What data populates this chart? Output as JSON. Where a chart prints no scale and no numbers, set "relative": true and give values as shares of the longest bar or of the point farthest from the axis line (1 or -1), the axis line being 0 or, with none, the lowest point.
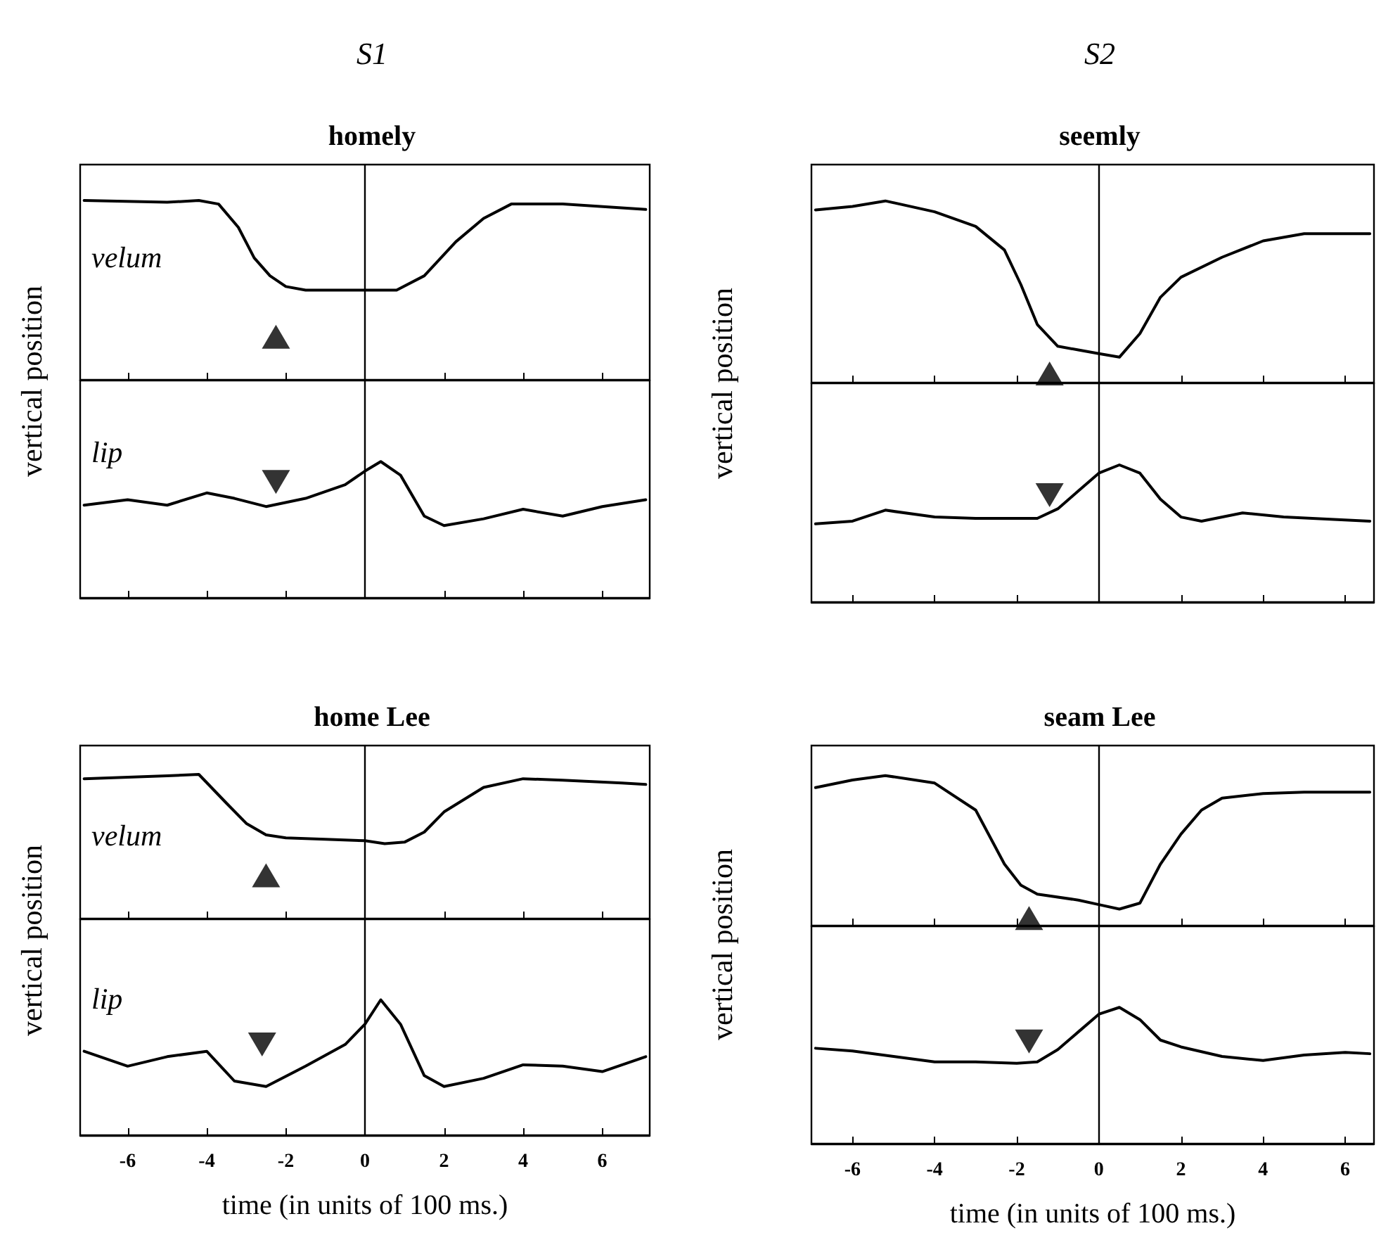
{
  "chart_data": [
    {
      "type": "line",
      "title": "homely",
      "annotations": [
        "S1"
      ],
      "ylabel": "vertical position",
      "relative": true,
      "xlim": [
        -7.2,
        7.2
      ],
      "xticks": [
        -6,
        -4,
        -2,
        0,
        2,
        4,
        6
      ],
      "tick_labels": false,
      "ref_lines": [
        {
          "axis": "x",
          "value": 0
        }
      ],
      "line_style": "solid",
      "series": [
        {
          "name": "velum",
          "color": "#000000",
          "x": [
            -7.1,
            -5,
            -4.2,
            -3.7,
            -3.2,
            -2.8,
            -2.4,
            -2.0,
            -1.5,
            0,
            0.8,
            1.5,
            2.3,
            3.0,
            3.7,
            5,
            7.1
          ],
          "values": [
            1.0,
            0.99,
            1.0,
            0.98,
            0.85,
            0.68,
            0.58,
            0.52,
            0.5,
            0.5,
            0.5,
            0.58,
            0.77,
            0.9,
            0.98,
            0.98,
            0.95
          ]
        },
        {
          "type": "scatter",
          "marker": "triangle",
          "color": "#000000",
          "x": [
            -2.25
          ],
          "values": [
            0.24
          ]
        }
      ]
    },
    {
      "type": "line",
      "relative": true,
      "xlim": [
        -7.2,
        7.2
      ],
      "xticks": [
        -6,
        -4,
        -2,
        0,
        2,
        4,
        6
      ],
      "tick_labels": false,
      "ref_lines": [
        {
          "axis": "x",
          "value": 0
        }
      ],
      "line_style": "solid",
      "series": [
        {
          "name": "lip",
          "color": "#000000",
          "x": [
            -7.1,
            -6,
            -5,
            -4,
            -3.3,
            -2.5,
            -1.5,
            -0.5,
            0,
            0.4,
            0.9,
            1.5,
            2.0,
            3,
            4,
            5,
            6,
            7.1
          ],
          "values": [
            0.68,
            0.72,
            0.68,
            0.77,
            0.73,
            0.67,
            0.73,
            0.83,
            0.93,
            1.0,
            0.9,
            0.6,
            0.53,
            0.58,
            0.65,
            0.6,
            0.67,
            0.72
          ]
        },
        {
          "type": "scatter",
          "marker": "triangle",
          "color": "#000000",
          "x": [
            -2.25
          ],
          "values": [
            0.85
          ]
        }
      ]
    },
    {
      "type": "line",
      "title": "seemly",
      "annotations": [
        "S2"
      ],
      "ylabel": "vertical position",
      "relative": true,
      "xlim": [
        -7.0,
        6.7
      ],
      "xticks": [
        -6,
        -4,
        -2,
        0,
        2,
        4,
        6
      ],
      "tick_labels": false,
      "ref_lines": [
        {
          "axis": "x",
          "value": 0
        }
      ],
      "line_style": "solid",
      "series": [
        {
          "color": "#000000",
          "x": [
            -6.9,
            -6,
            -5.2,
            -4,
            -3,
            -2.3,
            -1.9,
            -1.5,
            -1.0,
            -0.5,
            0,
            0.5,
            1,
            1.5,
            2,
            3,
            4,
            5,
            6,
            6.6
          ],
          "values": [
            0.95,
            0.97,
            1.0,
            0.94,
            0.86,
            0.73,
            0.54,
            0.32,
            0.2,
            0.18,
            0.16,
            0.14,
            0.27,
            0.47,
            0.58,
            0.69,
            0.78,
            0.82,
            0.82,
            0.82
          ]
        },
        {
          "type": "scatter",
          "marker": "triangle",
          "color": "#000000",
          "x": [
            -1.2
          ],
          "values": [
            0.05
          ]
        }
      ]
    },
    {
      "type": "line",
      "relative": true,
      "xlim": [
        -7.0,
        6.7
      ],
      "xticks": [
        -6,
        -4,
        -2,
        0,
        2,
        4,
        6
      ],
      "tick_labels": false,
      "ref_lines": [
        {
          "axis": "x",
          "value": 0
        }
      ],
      "line_style": "solid",
      "series": [
        {
          "color": "#000000",
          "x": [
            -6.9,
            -6,
            -5.2,
            -4,
            -3,
            -2,
            -1.5,
            -1,
            -0.5,
            0,
            0.5,
            1,
            1.5,
            2,
            2.5,
            3.5,
            4.5,
            6.6
          ],
          "values": [
            0.57,
            0.59,
            0.67,
            0.62,
            0.61,
            0.61,
            0.61,
            0.68,
            0.81,
            0.94,
            1.0,
            0.94,
            0.75,
            0.62,
            0.59,
            0.65,
            0.62,
            0.59
          ]
        },
        {
          "type": "scatter",
          "marker": "triangle",
          "color": "#000000",
          "x": [
            -1.2
          ],
          "values": [
            0.78
          ]
        }
      ]
    },
    {
      "type": "line",
      "title": "home Lee",
      "ylabel": "vertical position",
      "relative": true,
      "xlim": [
        -7.2,
        7.2
      ],
      "xticks": [
        -6,
        -4,
        -2,
        0,
        2,
        4,
        6
      ],
      "tick_labels": false,
      "ref_lines": [
        {
          "axis": "x",
          "value": 0
        }
      ],
      "line_style": "solid",
      "series": [
        {
          "name": "velum",
          "color": "#000000",
          "x": [
            -7.1,
            -5,
            -4.2,
            -3.5,
            -3,
            -2.5,
            -2,
            -1,
            0,
            0.5,
            1,
            1.5,
            2,
            3,
            4,
            5,
            6.5,
            7.1
          ],
          "values": [
            0.97,
            0.99,
            1.0,
            0.8,
            0.66,
            0.58,
            0.56,
            0.55,
            0.54,
            0.52,
            0.53,
            0.6,
            0.74,
            0.91,
            0.97,
            0.96,
            0.94,
            0.93
          ]
        },
        {
          "type": "scatter",
          "marker": "triangle",
          "color": "#000000",
          "x": [
            -2.5
          ],
          "values": [
            0.3
          ]
        }
      ]
    },
    {
      "type": "line",
      "xlabel": "time (in units of 100 ms.)",
      "relative": true,
      "xlim": [
        -7.2,
        7.2
      ],
      "xticks": [
        -6,
        -4,
        -2,
        0,
        2,
        4,
        6
      ],
      "tick_labels": "x",
      "ref_lines": [
        {
          "axis": "x",
          "value": 0
        }
      ],
      "line_style": "solid",
      "series": [
        {
          "name": "lip",
          "color": "#000000",
          "x": [
            -7.1,
            -6,
            -5,
            -4,
            -3.3,
            -2.5,
            -1.5,
            -0.5,
            0,
            0.4,
            0.9,
            1.5,
            2,
            3,
            4,
            5,
            6,
            7.1
          ],
          "values": [
            0.62,
            0.51,
            0.58,
            0.62,
            0.4,
            0.36,
            0.51,
            0.67,
            0.82,
            1.0,
            0.82,
            0.44,
            0.36,
            0.42,
            0.52,
            0.51,
            0.47,
            0.58
          ]
        },
        {
          "type": "scatter",
          "marker": "triangle",
          "color": "#000000",
          "x": [
            -2.6
          ],
          "values": [
            0.67
          ]
        }
      ]
    },
    {
      "type": "line",
      "title": "seam Lee",
      "ylabel": "vertical position",
      "relative": true,
      "xlim": [
        -7.0,
        6.7
      ],
      "xticks": [
        -6,
        -4,
        -2,
        0,
        2,
        4,
        6
      ],
      "tick_labels": false,
      "ref_lines": [
        {
          "axis": "x",
          "value": 0
        }
      ],
      "line_style": "solid",
      "series": [
        {
          "color": "#000000",
          "x": [
            -6.9,
            -6,
            -5.2,
            -4,
            -3,
            -2.3,
            -1.9,
            -1.5,
            -0.5,
            0,
            0.5,
            1,
            1.5,
            2,
            2.5,
            3,
            4,
            5,
            6.6
          ],
          "values": [
            0.92,
            0.97,
            1.0,
            0.95,
            0.77,
            0.41,
            0.27,
            0.21,
            0.17,
            0.14,
            0.11,
            0.15,
            0.41,
            0.61,
            0.77,
            0.85,
            0.88,
            0.89,
            0.89
          ]
        },
        {
          "type": "scatter",
          "marker": "triangle",
          "color": "#000000",
          "x": [
            -1.7
          ],
          "values": [
            0.05
          ]
        }
      ]
    },
    {
      "type": "line",
      "xlabel": "time (in units of 100 ms.)",
      "relative": true,
      "xlim": [
        -7.0,
        6.7
      ],
      "xticks": [
        -6,
        -4,
        -2,
        0,
        2,
        4,
        6
      ],
      "tick_labels": "x",
      "ref_lines": [
        {
          "axis": "x",
          "value": 0
        }
      ],
      "line_style": "solid",
      "series": [
        {
          "color": "#000000",
          "x": [
            -6.9,
            -6,
            -5,
            -4,
            -3,
            -2,
            -1.5,
            -1,
            -0.5,
            0,
            0.5,
            1,
            1.5,
            2,
            3,
            4,
            5,
            6,
            6.6
          ],
          "values": [
            0.7,
            0.68,
            0.64,
            0.6,
            0.6,
            0.59,
            0.6,
            0.69,
            0.82,
            0.95,
            1.0,
            0.91,
            0.76,
            0.71,
            0.64,
            0.61,
            0.65,
            0.67,
            0.66
          ]
        },
        {
          "type": "scatter",
          "marker": "triangle",
          "color": "#000000",
          "x": [
            -1.7
          ],
          "values": [
            0.75
          ]
        }
      ]
    }
  ]
}
